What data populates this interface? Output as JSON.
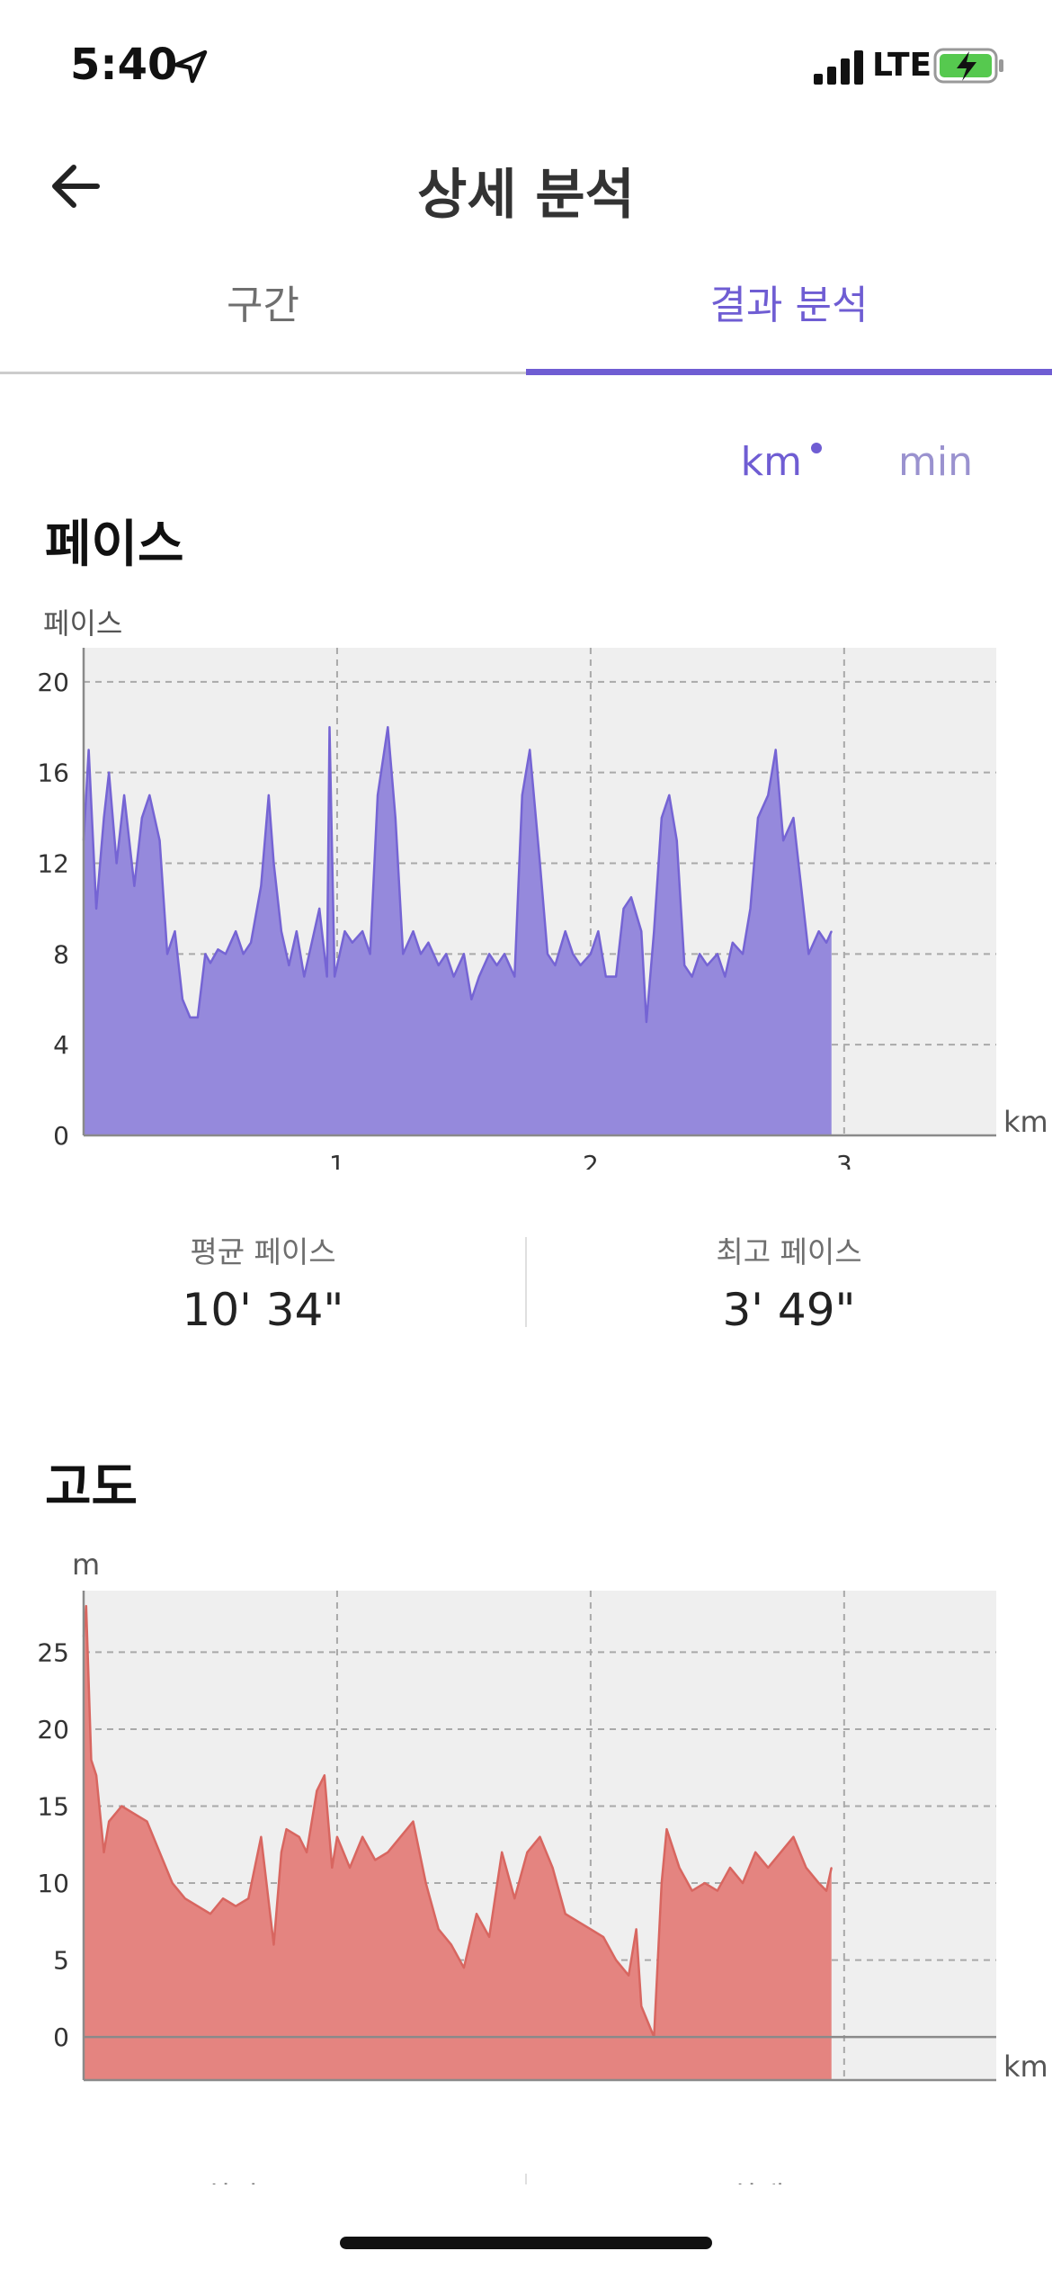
{
  "status_bar": {
    "time": "5:40",
    "network": "LTE"
  },
  "header": {
    "title": "상세 분석"
  },
  "tabs": [
    {
      "label": "구간",
      "selected": false
    },
    {
      "label": "결과 분석",
      "selected": true
    }
  ],
  "unit_toggle": {
    "km": "km",
    "min": "min",
    "selected": "km"
  },
  "colors": {
    "accent": "#6f5dd3",
    "pace_fill": "#9589dc",
    "pace_line": "#7564d4",
    "elev_fill": "#e48480",
    "elev_line": "#d86660",
    "plot_bg": "#efefef"
  },
  "pace": {
    "title": "페이스",
    "y_unit": "페이스",
    "x_unit": "km",
    "stats": {
      "avg_label": "평균 페이스",
      "avg_value": "10' 34\"",
      "best_label": "최고 페이스",
      "best_value": "3' 49\""
    }
  },
  "elevation": {
    "title": "고도",
    "y_unit": "m",
    "x_unit": "km",
    "stats": {
      "min_label": "최저 고도",
      "max_label": "최대 고도"
    }
  },
  "chart_data": [
    {
      "type": "area",
      "xlim": [
        0,
        3.6
      ],
      "ylim": [
        0,
        21.5
      ],
      "x_ticks": [
        1,
        2,
        3
      ],
      "y_ticks": [
        0,
        4,
        8,
        12,
        16,
        20
      ],
      "grid": true,
      "series": [
        {
          "x": [
            0,
            0.02,
            0.05,
            0.08,
            0.1,
            0.13,
            0.16,
            0.2,
            0.23,
            0.26,
            0.3,
            0.33,
            0.36,
            0.39,
            0.42,
            0.45,
            0.48,
            0.5,
            0.53,
            0.56,
            0.6,
            0.63,
            0.66,
            0.7,
            0.73,
            0.75,
            0.78,
            0.81,
            0.84,
            0.87,
            0.9,
            0.93,
            0.96,
            0.97,
            0.99,
            1.0,
            1.03,
            1.06,
            1.1,
            1.13,
            1.16,
            1.2,
            1.23,
            1.26,
            1.3,
            1.33,
            1.36,
            1.4,
            1.43,
            1.46,
            1.5,
            1.53,
            1.56,
            1.6,
            1.63,
            1.66,
            1.7,
            1.73,
            1.76,
            1.8,
            1.83,
            1.86,
            1.9,
            1.93,
            1.96,
            2.0,
            2.03,
            2.06,
            2.1,
            2.13,
            2.16,
            2.2,
            2.22,
            2.25,
            2.28,
            2.31,
            2.34,
            2.37,
            2.4,
            2.43,
            2.46,
            2.5,
            2.53,
            2.56,
            2.6,
            2.63,
            2.66,
            2.7,
            2.73,
            2.76,
            2.8,
            2.83,
            2.86,
            2.9,
            2.93,
            2.95
          ],
          "y": [
            13,
            17,
            10,
            14,
            16,
            12,
            15,
            11,
            14,
            15,
            13,
            8,
            9,
            6,
            5.2,
            5.2,
            8,
            7.6,
            8.2,
            8,
            9,
            8,
            8.5,
            11,
            15,
            12,
            9,
            7.5,
            9,
            7,
            8.5,
            10,
            7,
            18,
            7,
            7.5,
            9,
            8.5,
            9,
            8,
            15,
            18,
            14,
            8,
            9,
            8,
            8.5,
            7.5,
            8,
            7,
            8,
            6,
            7,
            8,
            7.5,
            8,
            7,
            15,
            17,
            12,
            8,
            7.5,
            9,
            8,
            7.5,
            8,
            9,
            7,
            7,
            10,
            10.5,
            9,
            5,
            9,
            14,
            15,
            13,
            7.5,
            7,
            8,
            7.5,
            8,
            7,
            8.5,
            8,
            10,
            14,
            15,
            17,
            13,
            14,
            11,
            8,
            9,
            8.5,
            9
          ]
        }
      ]
    },
    {
      "type": "area",
      "xlim": [
        0,
        3.6
      ],
      "ylim": [
        -2.8,
        29
      ],
      "x_ticks": [
        1,
        2,
        3
      ],
      "y_ticks": [
        0,
        5,
        10,
        15,
        20,
        25
      ],
      "grid": true,
      "series": [
        {
          "x": [
            0,
            0.01,
            0.03,
            0.05,
            0.08,
            0.1,
            0.15,
            0.2,
            0.25,
            0.3,
            0.35,
            0.4,
            0.45,
            0.5,
            0.55,
            0.6,
            0.65,
            0.7,
            0.75,
            0.78,
            0.8,
            0.85,
            0.88,
            0.92,
            0.95,
            0.98,
            1.0,
            1.05,
            1.1,
            1.15,
            1.2,
            1.25,
            1.3,
            1.35,
            1.4,
            1.45,
            1.5,
            1.55,
            1.6,
            1.65,
            1.7,
            1.75,
            1.8,
            1.85,
            1.9,
            1.95,
            2.0,
            2.05,
            2.1,
            2.15,
            2.18,
            2.2,
            2.25,
            2.28,
            2.3,
            2.35,
            2.4,
            2.45,
            2.5,
            2.55,
            2.6,
            2.65,
            2.7,
            2.75,
            2.8,
            2.85,
            2.9,
            2.93,
            2.95
          ],
          "y": [
            26,
            28,
            18,
            17,
            12,
            14,
            15,
            14.5,
            14,
            12,
            10,
            9,
            8.5,
            8,
            9,
            8.5,
            9,
            13,
            6,
            12,
            13.5,
            13,
            12,
            16,
            17,
            11,
            13,
            11,
            13,
            11.5,
            12,
            13,
            14,
            10,
            7,
            6,
            4.5,
            8,
            6.5,
            12,
            9,
            12,
            13,
            11,
            8,
            7.5,
            7,
            6.5,
            5,
            4,
            7,
            2,
            0,
            10,
            13.5,
            11,
            9.5,
            10,
            9.5,
            11,
            10,
            12,
            11,
            12,
            13,
            11,
            10,
            9.5,
            11
          ]
        }
      ]
    }
  ]
}
